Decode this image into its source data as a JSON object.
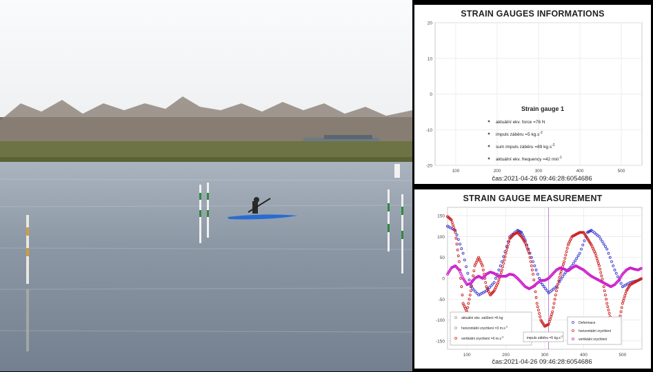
{
  "photo": {
    "description_colors": {
      "sky": "#f4f5f6",
      "water": "#8a96a6",
      "trees": "#5e5448",
      "bank": "#5f6b3c",
      "kayak": "#2a6bd1"
    }
  },
  "info_panel": {
    "title": "STRAIN GAUGES INFORMATIONS",
    "timestamp": "čas:2021-04-26 09:46:28:6054686",
    "legend_title": "Strain gauge 1",
    "legend_items": [
      {
        "label": "aktuální ekv. force =76 N",
        "sup": ""
      },
      {
        "label": "impuls záběru =5 kg.s",
        "sup": "-2"
      },
      {
        "label": "sum impuls záběru =89 kg.s",
        "sup": "-2"
      },
      {
        "label": "aktuální ekv. frequency =42 min",
        "sup": "-1"
      }
    ]
  },
  "meas_panel": {
    "title": "STRAIN GAUGE MEASUREMENT",
    "timestamp": "čas:2021-04-26 09:46:28:6054686",
    "legend_left": [
      {
        "label": "aktuální ekv. zatížení =6 kg",
        "sup": "",
        "color": "#999999"
      },
      {
        "label": "horizontální zrychlení =3 m.s",
        "sup": "-2",
        "color": "#999999"
      },
      {
        "label": "vertikální zrychlení =0 m.s",
        "sup": "-2",
        "color": "#cc2222"
      }
    ],
    "legend_mid": {
      "label": "impuls záběru =5 kg.s",
      "sup": "-2"
    },
    "legend_right": [
      {
        "label": "Deformace",
        "color": "#3a3ad0"
      },
      {
        "label": "horizontální zrychlení",
        "color": "#cc2222"
      },
      {
        "label": "vertikální zrychlení",
        "color": "#cc22cc"
      }
    ]
  },
  "chart_data": [
    {
      "type": "scatter",
      "title": "STRAIN GAUGES INFORMATIONS",
      "xlabel": "",
      "ylabel": "",
      "xlim": [
        50,
        550
      ],
      "ylim": [
        -20,
        20
      ],
      "x_ticks": [
        "100",
        "200",
        "300",
        "400",
        "500"
      ],
      "y_ticks": [
        "20",
        "10",
        "0",
        "-10",
        "-20"
      ],
      "grid": true,
      "series": []
    },
    {
      "type": "scatter",
      "title": "STRAIN GAUGE MEASUREMENT",
      "xlabel": "",
      "ylabel": "",
      "xlim": [
        50,
        550
      ],
      "ylim": [
        -170,
        170
      ],
      "x_ticks": [
        "100",
        "200",
        "300",
        "400",
        "500"
      ],
      "y_ticks": [
        "150",
        "100",
        "50",
        "0",
        "-50",
        "-100",
        "-150"
      ],
      "grid": true,
      "marker_line_x": 310,
      "series": [
        {
          "name": "Deformace",
          "color": "#3a3ad0",
          "x": [
            50,
            70,
            90,
            110,
            130,
            150,
            170,
            190,
            210,
            230,
            240,
            250,
            270,
            290,
            310,
            330,
            350,
            370,
            390,
            410,
            420,
            440,
            460,
            480,
            500,
            520,
            540,
            550
          ],
          "y": [
            125,
            115,
            60,
            -20,
            -40,
            -30,
            -10,
            40,
            100,
            115,
            110,
            90,
            40,
            -10,
            -35,
            -20,
            10,
            30,
            60,
            110,
            115,
            100,
            70,
            20,
            -20,
            -10,
            -5,
            0
          ]
        },
        {
          "name": "horizontální zrychlení",
          "color": "#cc2222",
          "x": [
            50,
            60,
            70,
            80,
            90,
            100,
            110,
            120,
            130,
            140,
            150,
            160,
            170,
            180,
            190,
            200,
            210,
            220,
            230,
            240,
            250,
            260,
            270,
            280,
            290,
            300,
            310,
            320,
            330,
            340,
            350,
            360,
            370,
            380,
            390,
            400,
            410,
            420,
            430,
            440,
            450,
            460,
            470,
            480,
            490,
            500,
            510,
            520,
            530,
            540,
            550
          ],
          "y": [
            148,
            140,
            110,
            40,
            -60,
            -80,
            -30,
            30,
            50,
            30,
            -20,
            -40,
            -30,
            -10,
            20,
            60,
            95,
            105,
            110,
            100,
            85,
            60,
            10,
            -60,
            -100,
            -115,
            -110,
            -80,
            -30,
            10,
            40,
            80,
            100,
            105,
            110,
            110,
            95,
            80,
            60,
            30,
            -10,
            -60,
            -100,
            -140,
            -110,
            -60,
            -30,
            -15,
            -10,
            -5,
            0
          ]
        },
        {
          "name": "vertikální zrychlení",
          "color": "#cc22cc",
          "x": [
            50,
            60,
            70,
            80,
            90,
            100,
            110,
            120,
            130,
            140,
            150,
            160,
            170,
            180,
            190,
            200,
            210,
            220,
            230,
            240,
            250,
            260,
            270,
            280,
            290,
            300,
            310,
            320,
            330,
            340,
            350,
            360,
            370,
            380,
            390,
            400,
            410,
            420,
            430,
            440,
            450,
            460,
            470,
            480,
            490,
            500,
            510,
            520,
            530,
            540,
            550
          ],
          "y": [
            10,
            25,
            30,
            20,
            0,
            -15,
            -12,
            0,
            5,
            0,
            10,
            15,
            12,
            5,
            5,
            5,
            10,
            8,
            0,
            -10,
            -20,
            -25,
            -20,
            -12,
            -5,
            -5,
            0,
            10,
            20,
            25,
            22,
            18,
            25,
            30,
            25,
            20,
            12,
            5,
            0,
            -5,
            -10,
            -15,
            -20,
            -15,
            -5,
            10,
            20,
            25,
            22,
            20,
            25
          ]
        }
      ]
    }
  ]
}
